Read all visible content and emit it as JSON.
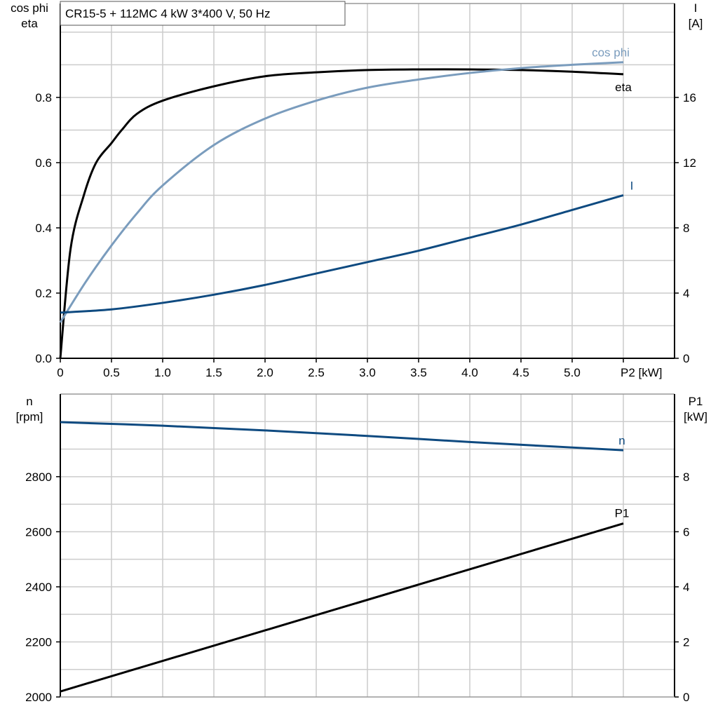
{
  "title": "CR15-5 + 112MC   4 kW   3*400 V, 50 Hz",
  "colors": {
    "eta": "#000000",
    "cos_phi": "#7a9cbd",
    "I": "#0e4a80",
    "n": "#0e4a80",
    "P1": "#000000",
    "grid": "#cccccc"
  },
  "chart_data": [
    {
      "type": "line",
      "xlabel": "P2 [kW]",
      "ylabel_left": [
        "cos phi",
        "eta"
      ],
      "ylabel_right": [
        "I",
        "[A]"
      ],
      "xlim": [
        0,
        6.0
      ],
      "ylim_left": [
        0,
        1.088
      ],
      "ylim_right": [
        0,
        21.76
      ],
      "x_ticks": [
        "0",
        "0.5",
        "1.0",
        "1.5",
        "2.0",
        "2.5",
        "3.0",
        "3.5",
        "4.0",
        "4.5",
        "5.0"
      ],
      "y_ticks_left": [
        "0.0",
        "0.2",
        "0.4",
        "0.6",
        "0.8"
      ],
      "y_ticks_right": [
        "0",
        "4",
        "8",
        "12",
        "16"
      ],
      "grid": true,
      "series": [
        {
          "name": "eta",
          "axis": "left",
          "color_key": "eta",
          "x": [
            0,
            0.1,
            0.23,
            0.35,
            0.5,
            0.6,
            0.75,
            1.0,
            1.5,
            2.0,
            2.5,
            3.0,
            3.5,
            4.0,
            4.5,
            5.0,
            5.5
          ],
          "y": [
            0,
            0.335,
            0.5,
            0.6,
            0.66,
            0.7,
            0.75,
            0.79,
            0.834,
            0.865,
            0.877,
            0.884,
            0.886,
            0.886,
            0.884,
            0.879,
            0.871
          ]
        },
        {
          "name": "cos phi",
          "axis": "left",
          "color_key": "cos_phi",
          "x": [
            0,
            0.25,
            0.5,
            0.75,
            1.0,
            1.5,
            2.0,
            2.5,
            3.0,
            3.5,
            4.0,
            4.5,
            5.0,
            5.5
          ],
          "y": [
            0.11,
            0.235,
            0.346,
            0.445,
            0.53,
            0.654,
            0.735,
            0.79,
            0.83,
            0.855,
            0.875,
            0.89,
            0.9,
            0.908
          ]
        },
        {
          "name": "I",
          "axis": "right",
          "color_key": "I",
          "x": [
            0,
            0.5,
            1.0,
            1.5,
            2.0,
            2.5,
            3.0,
            3.5,
            4.0,
            4.5,
            5.0,
            5.5
          ],
          "y": [
            2.8,
            3.0,
            3.4,
            3.9,
            4.5,
            5.2,
            5.9,
            6.6,
            7.4,
            8.2,
            9.1,
            10.0
          ]
        }
      ]
    },
    {
      "type": "line",
      "ylabel_left": [
        "n",
        "[rpm]"
      ],
      "ylabel_right": [
        "P1",
        "[kW]"
      ],
      "xlim": [
        0,
        6.0
      ],
      "ylim_left": [
        2000,
        3100
      ],
      "ylim_right": [
        0,
        11
      ],
      "y_ticks_left": [
        "2000",
        "2200",
        "2400",
        "2600",
        "2800"
      ],
      "y_ticks_right": [
        "0",
        "2",
        "4",
        "6",
        "8"
      ],
      "grid": true,
      "series": [
        {
          "name": "n",
          "axis": "left",
          "color_key": "n",
          "x": [
            0,
            1,
            2,
            3,
            4,
            5,
            5.5
          ],
          "y": [
            2998,
            2985,
            2968,
            2948,
            2926,
            2906,
            2896
          ]
        },
        {
          "name": "P1",
          "axis": "right",
          "color_key": "P1",
          "x": [
            0,
            5.5
          ],
          "y": [
            0.2,
            6.3
          ]
        }
      ]
    }
  ]
}
